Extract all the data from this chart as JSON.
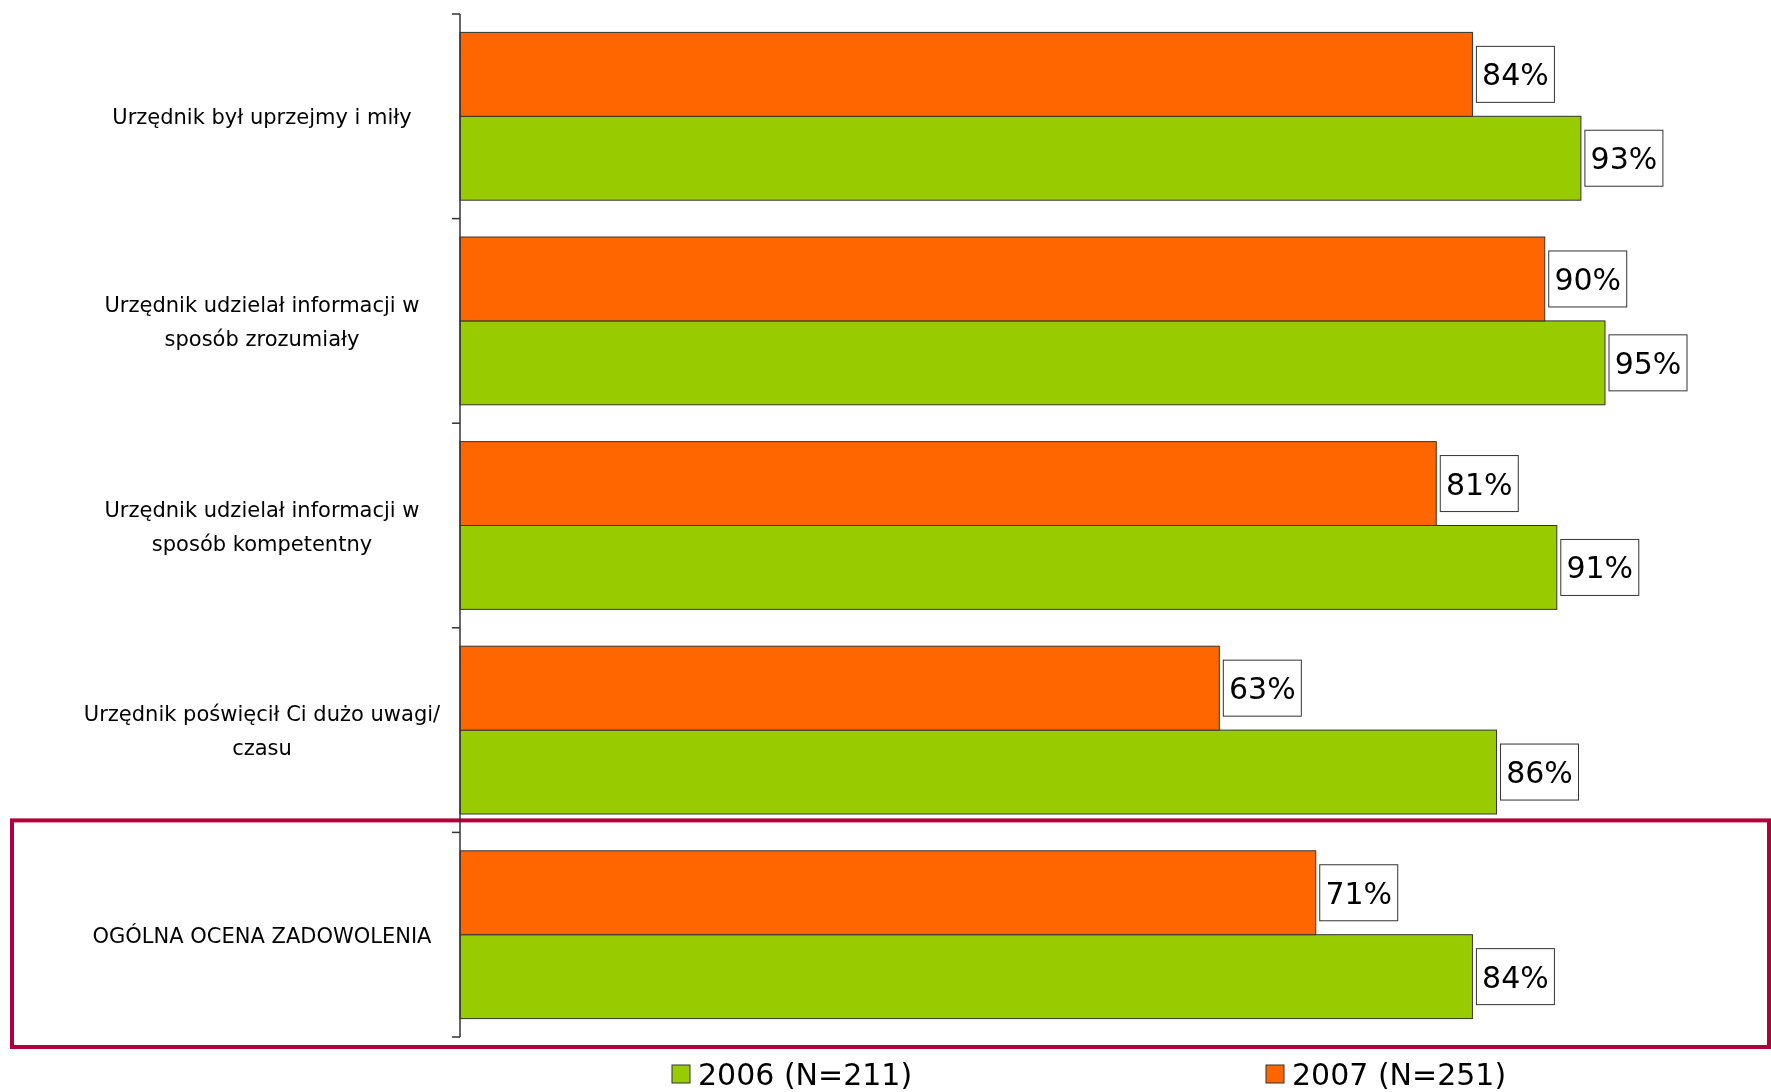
{
  "chart_data": {
    "type": "bar",
    "orientation": "horizontal",
    "categories": [
      "Urzędnik był uprzejmy i miły",
      "Urzędnik udzielał informacji w sposób zrozumiały",
      "Urzędnik udzielał informacji w sposób kompetentny",
      "Urzędnik poświęcił Ci dużo uwagi/ czasu",
      "OGÓLNA OCENA ZADOWOLENIA"
    ],
    "series": [
      {
        "name": "2006 (N=211)",
        "color": "#99cc00",
        "values": [
          93,
          95,
          91,
          86,
          84
        ],
        "value_labels": [
          "93%",
          "95%",
          "91%",
          "86%",
          "84%"
        ]
      },
      {
        "name": "2007 (N=251)",
        "color": "#ff6600",
        "values": [
          84,
          90,
          81,
          63,
          71
        ],
        "value_labels": [
          "84%",
          "90%",
          "81%",
          "63%",
          "71%"
        ]
      }
    ],
    "legend": "bottom",
    "tick_labels": "y"
  }
}
